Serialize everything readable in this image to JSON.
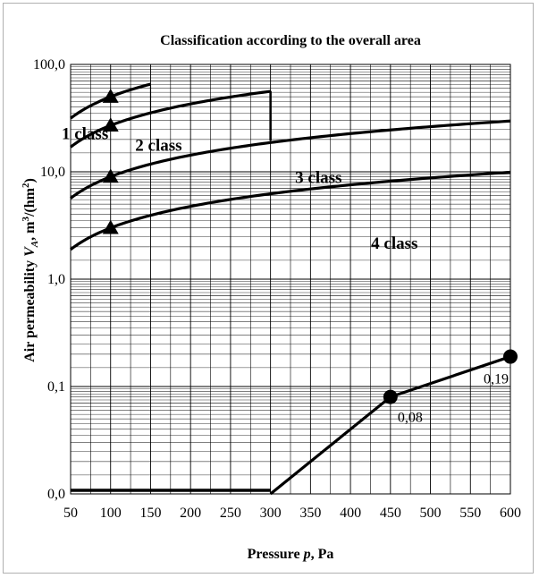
{
  "chart_data": {
    "type": "line",
    "title": "Classification according to the overall area",
    "xlabel": {
      "prefix": "Pressure ",
      "var": "p",
      "suffix": ", Pa"
    },
    "ylabel": {
      "prefix": "Air permeability ",
      "var": "V",
      "sub": "A",
      "units_a": ", m",
      "units_sup1": "3",
      "units_b": "/(hm",
      "units_sup2": "2",
      "units_c": ")"
    },
    "x_range": [
      50,
      600
    ],
    "x_ticks": [
      "50",
      "100",
      "150",
      "200",
      "250",
      "300",
      "350",
      "400",
      "450",
      "500",
      "550",
      "600"
    ],
    "y_scale": "log",
    "y_range": [
      0.01,
      100
    ],
    "y_ticks": [
      {
        "value": 100,
        "label": "100,0"
      },
      {
        "value": 10,
        "label": "10,0"
      },
      {
        "value": 1,
        "label": "1,0"
      },
      {
        "value": 0.1,
        "label": "0,1"
      },
      {
        "value": 0.01,
        "label": "0,0"
      }
    ],
    "grid": true,
    "class_boundaries": [
      {
        "formula_factor": 50,
        "x_from": 50,
        "x_to": 150
      },
      {
        "formula_factor": 27,
        "x_from": 50,
        "x_to": 300
      },
      {
        "formula_factor": 9,
        "x_from": 50,
        "x_to": 600
      },
      {
        "formula_factor": 3,
        "x_from": 50,
        "x_to": 600
      }
    ],
    "markers": [
      {
        "x": 100,
        "y": 50
      },
      {
        "x": 100,
        "y": 27
      },
      {
        "x": 100,
        "y": 9
      },
      {
        "x": 100,
        "y": 3
      }
    ],
    "vertical_connectors": [
      {
        "x": 150,
        "y_from": 35.0,
        "y_to": 64.0
      },
      {
        "x": 300,
        "y_from": 19.5,
        "y_to": 56.5
      }
    ],
    "class_labels": [
      {
        "text": "1 class",
        "x": 68,
        "y": 23
      },
      {
        "text": "2 class",
        "x": 160,
        "y": 18
      },
      {
        "text": "3 class",
        "x": 360,
        "y": 9
      },
      {
        "text": "4 class",
        "x": 455,
        "y": 2.2
      }
    ],
    "measured_series": {
      "x": [
        50,
        300,
        450,
        600
      ],
      "y": [
        0.011,
        0.011,
        0.08,
        0.19
      ],
      "points": [
        {
          "x": 450,
          "y": 0.08,
          "label": "0,08"
        },
        {
          "x": 600,
          "y": 0.19,
          "label": "0,19"
        }
      ]
    }
  }
}
